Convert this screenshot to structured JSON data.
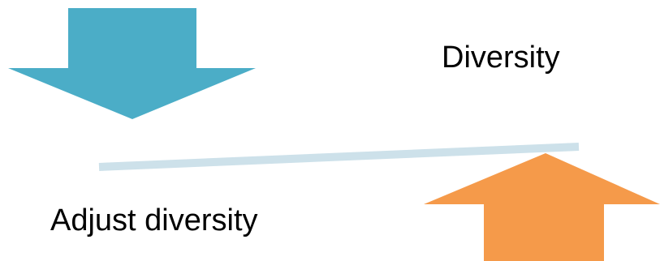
{
  "diagram": {
    "labels": {
      "top_right": "Diversity",
      "bottom_left": "Adjust diversity"
    },
    "colors": {
      "down_arrow": "#4badc7",
      "up_arrow": "#f59a4a",
      "balance_beam": "#cde1ea",
      "text": "#000000"
    },
    "icons": {
      "down_arrow": "arrow-down-icon",
      "up_arrow": "arrow-up-icon"
    }
  }
}
